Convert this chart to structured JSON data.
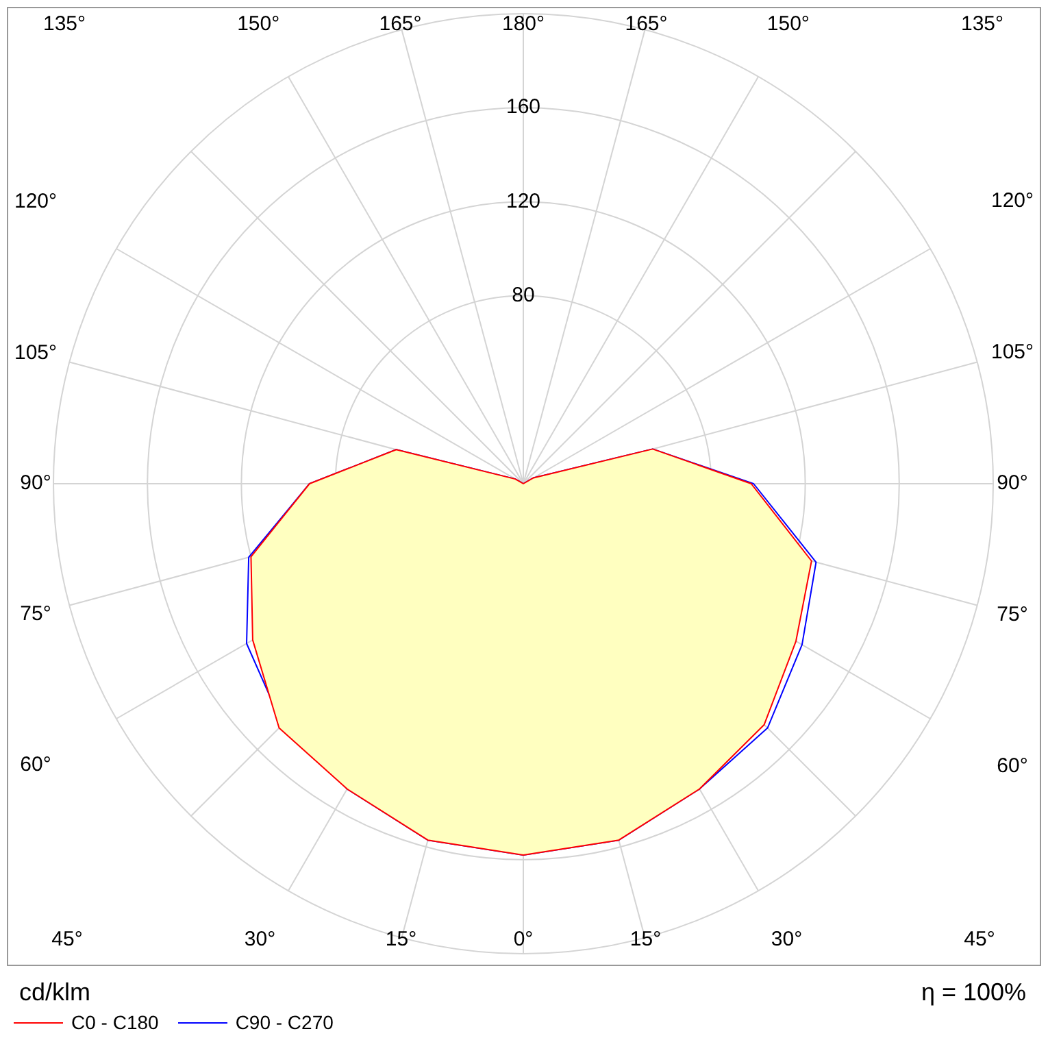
{
  "chart_data": {
    "type": "radar",
    "ylabel": "cd/klm",
    "annotations": [
      "η = 100%"
    ],
    "categories": [
      "180°",
      "165°",
      "150°",
      "135°",
      "120°",
      "105°",
      "90°",
      "75°",
      "60°",
      "45°",
      "30°",
      "15°",
      "0°",
      "15°",
      "30°",
      "45°",
      "60°",
      "75°",
      "90°",
      "105°",
      "120°",
      "135°",
      "150°",
      "165°"
    ],
    "series": [
      {
        "name": "C0 - C180",
        "color": "#ff0000",
        "values": [
          0,
          0,
          0,
          0,
          5,
          57,
          97,
          127,
          134,
          145,
          150,
          157,
          158,
          157,
          150,
          147,
          133,
          120,
          91,
          56,
          4,
          0,
          0,
          0
        ]
      },
      {
        "name": "C90 - C270",
        "color": "#0000ff",
        "values": [
          0,
          0,
          0,
          0,
          5,
          57,
          98,
          129,
          137,
          147,
          150,
          157,
          158,
          157,
          150,
          145,
          136,
          121,
          91,
          56,
          4,
          0,
          0,
          0
        ]
      }
    ],
    "ylim": [
      0,
      200
    ],
    "yticks": [
      80,
      120,
      160
    ],
    "grid": true,
    "legend": "bottom left"
  }
}
